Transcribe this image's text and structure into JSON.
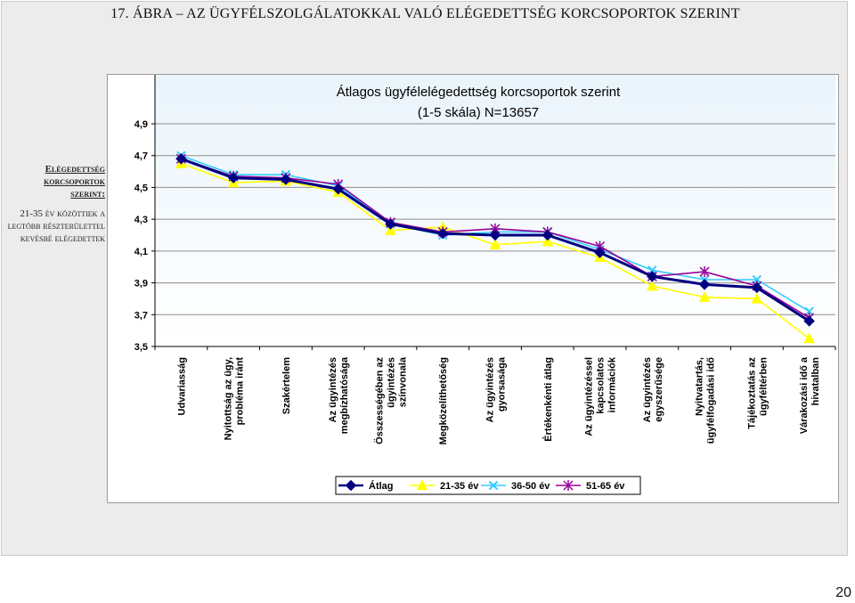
{
  "heading": "17. ÁBRA – AZ ÜGYFÉLSZOLGÁLATOKKAL VALÓ ELÉGEDETTSÉG KORCSOPORTOK SZERINT",
  "sidebar": {
    "title": "Elégedettség korcsoportok szerint:",
    "text": "21-35 év közöttiek a legtöbb részterülettel kevésbé elégedettek"
  },
  "page_number": "20",
  "chart_data": {
    "type": "line",
    "title": "Átlagos ügyfélelégedettség korcsoportok szerint",
    "subtitle": "(1-5 skála) N=13657",
    "xlabel": "",
    "ylabel": "",
    "ylim": [
      3.5,
      4.9
    ],
    "yticks": [
      "4,9",
      "4,7",
      "4,5",
      "4,3",
      "4,1",
      "3,9",
      "3,7",
      "3,5"
    ],
    "ytick_values": [
      4.9,
      4.7,
      4.5,
      4.3,
      4.1,
      3.9,
      3.7,
      3.5
    ],
    "grid": true,
    "legend_position": "bottom",
    "categories": [
      [
        "Udvariasság"
      ],
      [
        "Nyitottság az ügy,",
        "probléma iránt"
      ],
      [
        "Szakértelem"
      ],
      [
        "Az ügyintézés",
        "megbízhatósága"
      ],
      [
        "Összességében az",
        "ügyintézés",
        "színvonala"
      ],
      [
        "Megközelíthetőség"
      ],
      [
        "Az ügyintézés",
        "gyorsasága"
      ],
      [
        "Értékenkénti átlag"
      ],
      [
        "Az ügyintézéssel",
        "kapcsolatos",
        "információk"
      ],
      [
        "Az ügyintézés",
        "egyszerűsége"
      ],
      [
        "Nyitvatartás,",
        "ügyfélfogadási idő"
      ],
      [
        "Tájékoztatás az",
        "ügyféltérben"
      ],
      [
        "Várakozási idő a",
        "hivatalban"
      ]
    ],
    "series": [
      {
        "name": "Átlag",
        "color": "#000080",
        "marker": "diamond",
        "values": [
          4.68,
          4.56,
          4.55,
          4.49,
          4.27,
          4.21,
          4.2,
          4.2,
          4.09,
          3.94,
          3.89,
          3.87,
          3.66
        ]
      },
      {
        "name": "21-35 év",
        "color": "#ffff00",
        "marker": "triangle",
        "values": [
          4.65,
          4.53,
          4.54,
          4.47,
          4.23,
          4.25,
          4.14,
          4.16,
          4.06,
          3.88,
          3.81,
          3.8,
          3.55
        ]
      },
      {
        "name": "36-50 év",
        "color": "#33ccff",
        "marker": "x",
        "values": [
          4.7,
          4.58,
          4.58,
          4.51,
          4.27,
          4.2,
          4.22,
          4.22,
          4.11,
          3.98,
          3.92,
          3.92,
          3.72
        ]
      },
      {
        "name": "51-65 év",
        "color": "#990099",
        "marker": "star",
        "values": [
          4.68,
          4.57,
          4.56,
          4.52,
          4.28,
          4.22,
          4.24,
          4.22,
          4.13,
          3.94,
          3.97,
          3.88,
          3.68
        ]
      }
    ]
  }
}
